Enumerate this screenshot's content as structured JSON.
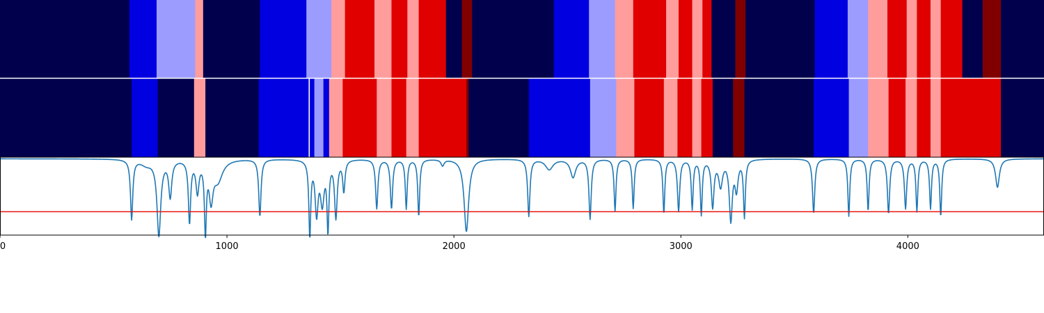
{
  "chart_data": [
    {
      "type": "heatmap",
      "panel": "segmentation-1",
      "xlim": [
        0,
        4600
      ],
      "segments": [
        {
          "start": 0,
          "end": 570,
          "color": "#00004c"
        },
        {
          "start": 570,
          "end": 690,
          "color": "#0000e0"
        },
        {
          "start": 690,
          "end": 860,
          "color": "#9c9cff"
        },
        {
          "start": 860,
          "end": 895,
          "color": "#ff9c9c"
        },
        {
          "start": 895,
          "end": 1145,
          "color": "#00004c"
        },
        {
          "start": 1145,
          "end": 1350,
          "color": "#0000e0"
        },
        {
          "start": 1350,
          "end": 1460,
          "color": "#9c9cff"
        },
        {
          "start": 1460,
          "end": 1520,
          "color": "#ff9c9c"
        },
        {
          "start": 1520,
          "end": 1650,
          "color": "#e00000"
        },
        {
          "start": 1650,
          "end": 1725,
          "color": "#ff9c9c"
        },
        {
          "start": 1725,
          "end": 1795,
          "color": "#e00000"
        },
        {
          "start": 1795,
          "end": 1845,
          "color": "#ff9c9c"
        },
        {
          "start": 1845,
          "end": 1965,
          "color": "#e00000"
        },
        {
          "start": 1965,
          "end": 2035,
          "color": "#00004c"
        },
        {
          "start": 2035,
          "end": 2080,
          "color": "#800000"
        },
        {
          "start": 2080,
          "end": 2440,
          "color": "#00004c"
        },
        {
          "start": 2440,
          "end": 2595,
          "color": "#0000e0"
        },
        {
          "start": 2595,
          "end": 2710,
          "color": "#9c9cff"
        },
        {
          "start": 2710,
          "end": 2790,
          "color": "#ff9c9c"
        },
        {
          "start": 2790,
          "end": 2935,
          "color": "#e00000"
        },
        {
          "start": 2935,
          "end": 2990,
          "color": "#ff9c9c"
        },
        {
          "start": 2990,
          "end": 3050,
          "color": "#e00000"
        },
        {
          "start": 3050,
          "end": 3095,
          "color": "#ff9c9c"
        },
        {
          "start": 3095,
          "end": 3135,
          "color": "#e00000"
        },
        {
          "start": 3135,
          "end": 3240,
          "color": "#00004c"
        },
        {
          "start": 3240,
          "end": 3285,
          "color": "#800000"
        },
        {
          "start": 3285,
          "end": 3590,
          "color": "#00004c"
        },
        {
          "start": 3590,
          "end": 3735,
          "color": "#0000e0"
        },
        {
          "start": 3735,
          "end": 3825,
          "color": "#9c9cff"
        },
        {
          "start": 3825,
          "end": 3910,
          "color": "#ff9c9c"
        },
        {
          "start": 3910,
          "end": 3995,
          "color": "#e00000"
        },
        {
          "start": 3995,
          "end": 4040,
          "color": "#ff9c9c"
        },
        {
          "start": 4040,
          "end": 4100,
          "color": "#e00000"
        },
        {
          "start": 4100,
          "end": 4145,
          "color": "#ff9c9c"
        },
        {
          "start": 4145,
          "end": 4240,
          "color": "#e00000"
        },
        {
          "start": 4240,
          "end": 4330,
          "color": "#00004c"
        },
        {
          "start": 4330,
          "end": 4410,
          "color": "#800000"
        },
        {
          "start": 4410,
          "end": 4600,
          "color": "#00004c"
        }
      ]
    },
    {
      "type": "heatmap",
      "panel": "segmentation-2",
      "xlim": [
        0,
        4600
      ],
      "segments": [
        {
          "start": 0,
          "end": 580,
          "color": "#00004c"
        },
        {
          "start": 580,
          "end": 695,
          "color": "#0000e0"
        },
        {
          "start": 695,
          "end": 855,
          "color": "#00004c"
        },
        {
          "start": 855,
          "end": 905,
          "color": "#ff9c9c"
        },
        {
          "start": 905,
          "end": 1140,
          "color": "#00004c"
        },
        {
          "start": 1140,
          "end": 1360,
          "color": "#0000e0"
        },
        {
          "start": 1360,
          "end": 1365,
          "color": "#ffffff"
        },
        {
          "start": 1365,
          "end": 1385,
          "color": "#0000e0"
        },
        {
          "start": 1385,
          "end": 1425,
          "color": "#9c9cff"
        },
        {
          "start": 1425,
          "end": 1450,
          "color": "#0000e0"
        },
        {
          "start": 1450,
          "end": 1510,
          "color": "#ff9c9c"
        },
        {
          "start": 1510,
          "end": 1660,
          "color": "#e00000"
        },
        {
          "start": 1660,
          "end": 1725,
          "color": "#ff9c9c"
        },
        {
          "start": 1725,
          "end": 1790,
          "color": "#e00000"
        },
        {
          "start": 1790,
          "end": 1845,
          "color": "#ff9c9c"
        },
        {
          "start": 1845,
          "end": 2055,
          "color": "#e00000"
        },
        {
          "start": 2055,
          "end": 2065,
          "color": "#800000"
        },
        {
          "start": 2065,
          "end": 2330,
          "color": "#00004c"
        },
        {
          "start": 2330,
          "end": 2600,
          "color": "#0000e0"
        },
        {
          "start": 2600,
          "end": 2715,
          "color": "#9c9cff"
        },
        {
          "start": 2715,
          "end": 2795,
          "color": "#ff9c9c"
        },
        {
          "start": 2795,
          "end": 2925,
          "color": "#e00000"
        },
        {
          "start": 2925,
          "end": 2985,
          "color": "#ff9c9c"
        },
        {
          "start": 2985,
          "end": 3050,
          "color": "#e00000"
        },
        {
          "start": 3050,
          "end": 3090,
          "color": "#ff9c9c"
        },
        {
          "start": 3090,
          "end": 3140,
          "color": "#e00000"
        },
        {
          "start": 3140,
          "end": 3230,
          "color": "#00004c"
        },
        {
          "start": 3230,
          "end": 3280,
          "color": "#800000"
        },
        {
          "start": 3280,
          "end": 3585,
          "color": "#00004c"
        },
        {
          "start": 3585,
          "end": 3740,
          "color": "#0000e0"
        },
        {
          "start": 3740,
          "end": 3825,
          "color": "#9c9cff"
        },
        {
          "start": 3825,
          "end": 3915,
          "color": "#ff9c9c"
        },
        {
          "start": 3915,
          "end": 3990,
          "color": "#e00000"
        },
        {
          "start": 3990,
          "end": 4040,
          "color": "#ff9c9c"
        },
        {
          "start": 4040,
          "end": 4100,
          "color": "#e00000"
        },
        {
          "start": 4100,
          "end": 4145,
          "color": "#ff9c9c"
        },
        {
          "start": 4145,
          "end": 4410,
          "color": "#e00000"
        },
        {
          "start": 4410,
          "end": 4600,
          "color": "#00004c"
        }
      ]
    },
    {
      "type": "line",
      "panel": "signal",
      "xlim": [
        0,
        4600
      ],
      "ylim": [
        0,
        1.5
      ],
      "x_ticks": [
        0,
        1000,
        2000,
        3000,
        4000
      ],
      "x_tick_labels": [
        "0",
        "1000",
        "2000",
        "3000",
        "4000"
      ],
      "threshold": {
        "value": 0.45,
        "color": "#e8150f"
      },
      "series_color": "#1f77b4",
      "baseline": 1.47,
      "dips": [
        {
          "x": 580,
          "depth": 1.15,
          "width": 6
        },
        {
          "x": 645,
          "depth": 0.1,
          "width": 30
        },
        {
          "x": 700,
          "depth": 1.45,
          "width": 10
        },
        {
          "x": 750,
          "depth": 0.7,
          "width": 8
        },
        {
          "x": 835,
          "depth": 1.2,
          "width": 6
        },
        {
          "x": 870,
          "depth": 0.6,
          "width": 8
        },
        {
          "x": 905,
          "depth": 1.35,
          "width": 5
        },
        {
          "x": 930,
          "depth": 0.7,
          "width": 10
        },
        {
          "x": 960,
          "depth": 0.4,
          "width": 25
        },
        {
          "x": 1145,
          "depth": 1.1,
          "width": 6
        },
        {
          "x": 1365,
          "depth": 1.45,
          "width": 5
        },
        {
          "x": 1395,
          "depth": 1.0,
          "width": 8
        },
        {
          "x": 1420,
          "depth": 0.8,
          "width": 10
        },
        {
          "x": 1445,
          "depth": 1.3,
          "width": 5
        },
        {
          "x": 1480,
          "depth": 1.1,
          "width": 7
        },
        {
          "x": 1515,
          "depth": 0.6,
          "width": 6
        },
        {
          "x": 1660,
          "depth": 0.95,
          "width": 6
        },
        {
          "x": 1725,
          "depth": 0.95,
          "width": 6
        },
        {
          "x": 1790,
          "depth": 0.95,
          "width": 5
        },
        {
          "x": 1845,
          "depth": 1.1,
          "width": 5
        },
        {
          "x": 1950,
          "depth": 0.12,
          "width": 8
        },
        {
          "x": 2055,
          "depth": 1.4,
          "width": 12
        },
        {
          "x": 2330,
          "depth": 1.1,
          "width": 6
        },
        {
          "x": 2420,
          "depth": 0.2,
          "width": 20
        },
        {
          "x": 2525,
          "depth": 0.35,
          "width": 14
        },
        {
          "x": 2600,
          "depth": 1.15,
          "width": 6
        },
        {
          "x": 2710,
          "depth": 1.0,
          "width": 5
        },
        {
          "x": 2790,
          "depth": 0.95,
          "width": 5
        },
        {
          "x": 2925,
          "depth": 1.05,
          "width": 5
        },
        {
          "x": 2990,
          "depth": 1.0,
          "width": 6
        },
        {
          "x": 3050,
          "depth": 0.95,
          "width": 5
        },
        {
          "x": 3090,
          "depth": 1.05,
          "width": 5
        },
        {
          "x": 3140,
          "depth": 0.9,
          "width": 7
        },
        {
          "x": 3175,
          "depth": 0.5,
          "width": 10
        },
        {
          "x": 3220,
          "depth": 1.15,
          "width": 8
        },
        {
          "x": 3245,
          "depth": 0.55,
          "width": 8
        },
        {
          "x": 3280,
          "depth": 1.1,
          "width": 5
        },
        {
          "x": 3585,
          "depth": 1.05,
          "width": 6
        },
        {
          "x": 3740,
          "depth": 1.1,
          "width": 5
        },
        {
          "x": 3825,
          "depth": 1.0,
          "width": 5
        },
        {
          "x": 3915,
          "depth": 1.05,
          "width": 6
        },
        {
          "x": 3990,
          "depth": 0.95,
          "width": 6
        },
        {
          "x": 4040,
          "depth": 1.0,
          "width": 5
        },
        {
          "x": 4100,
          "depth": 0.95,
          "width": 5
        },
        {
          "x": 4145,
          "depth": 1.1,
          "width": 5
        },
        {
          "x": 4395,
          "depth": 0.55,
          "width": 10
        }
      ]
    }
  ]
}
